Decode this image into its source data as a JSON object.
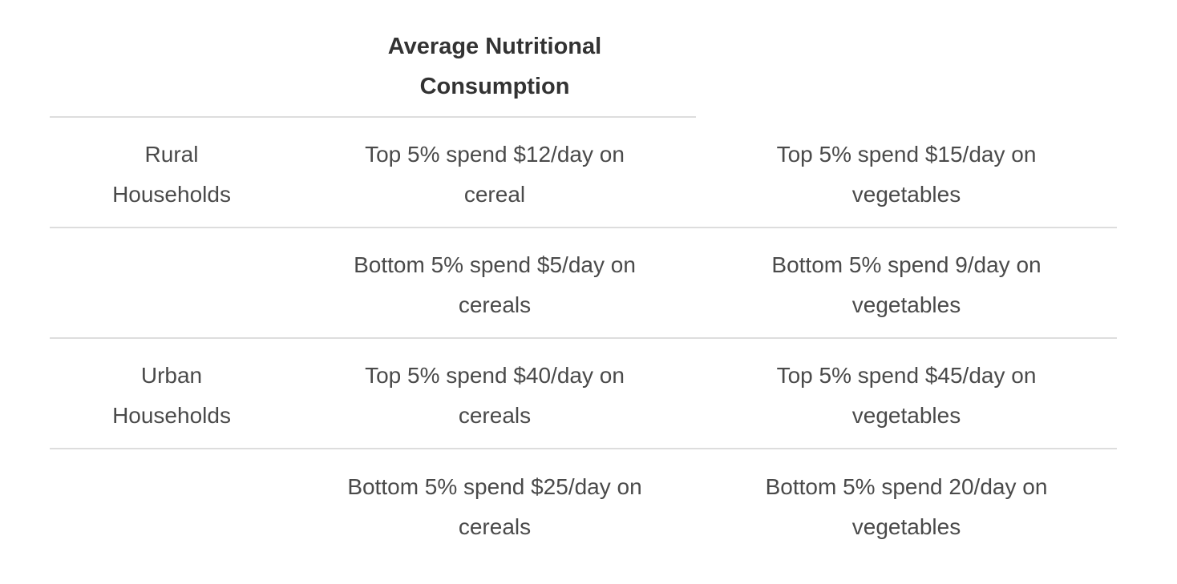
{
  "table": {
    "header": {
      "label": "Average Nutritional Consumption"
    },
    "rows": [
      {
        "cells": [
          "Rural Households",
          "Top 5% spend $12/day on cereal",
          "Top 5% spend $15/day on vegetables"
        ]
      },
      {
        "cells": [
          "",
          "Bottom 5% spend $5/day on cereals",
          "Bottom 5% spend 9/day on vegetables"
        ]
      },
      {
        "cells": [
          "Urban Households",
          "Top 5% spend $40/day on cereals",
          "Top 5% spend $45/day on vegetables"
        ]
      },
      {
        "cells": [
          "",
          "Bottom 5% spend $25/day on cereals",
          "Bottom 5% spend 20/day on vegetables"
        ]
      }
    ],
    "style": {
      "background": "#ffffff",
      "divider_color": "#dddddd",
      "header_text_color": "#333333",
      "body_text_color": "#4a4a4a"
    }
  }
}
